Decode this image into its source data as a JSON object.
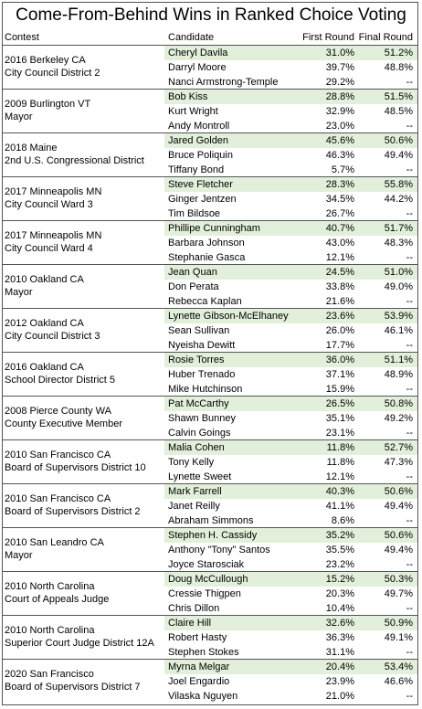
{
  "header": {
    "title": "Come-From-Behind Wins in Ranked Choice Voting"
  },
  "table": {
    "columns": [
      "Contest",
      "Candidate",
      "First Round",
      "Final Round"
    ],
    "groups": [
      {
        "contest": [
          "2016 Berkeley CA",
          "City Council District 2"
        ],
        "rows": [
          [
            "Cheryl Davila",
            "31.0%",
            "51.2%"
          ],
          [
            "Darryl Moore",
            "39.7%",
            "48.8%"
          ],
          [
            "Nanci Armstrong-Temple",
            "29.2%",
            "--"
          ]
        ]
      },
      {
        "contest": [
          "2009 Burlington VT",
          "Mayor"
        ],
        "rows": [
          [
            "Bob Kiss",
            "28.8%",
            "51.5%"
          ],
          [
            "Kurt Wright",
            "32.9%",
            "48.5%"
          ],
          [
            "Andy Montroll",
            "23.0%",
            "--"
          ]
        ]
      },
      {
        "contest": [
          "2018 Maine",
          "2nd U.S. Congressional District"
        ],
        "rows": [
          [
            "Jared Golden",
            "45.6%",
            "50.6%"
          ],
          [
            "Bruce Poliquin",
            "46.3%",
            "49.4%"
          ],
          [
            "Tiffany Bond",
            "5.7%",
            "--"
          ]
        ]
      },
      {
        "contest": [
          "2017 Minneapolis MN",
          "City Council Ward 3"
        ],
        "rows": [
          [
            "Steve Fletcher",
            "28.3%",
            "55.8%"
          ],
          [
            "Ginger Jentzen",
            "34.5%",
            "44.2%"
          ],
          [
            "Tim Bildsoe",
            "26.7%",
            "--"
          ]
        ]
      },
      {
        "contest": [
          "2017 Minneapolis MN",
          "City Council Ward 4"
        ],
        "rows": [
          [
            "Phillipe Cunningham",
            "40.7%",
            "51.7%"
          ],
          [
            "Barbara Johnson",
            "43.0%",
            "48.3%"
          ],
          [
            "Stephanie Gasca",
            "12.1%",
            "--"
          ]
        ]
      },
      {
        "contest": [
          "2010 Oakland CA",
          "Mayor"
        ],
        "rows": [
          [
            "Jean Quan",
            "24.5%",
            "51.0%"
          ],
          [
            "Don Perata",
            "33.8%",
            "49.0%"
          ],
          [
            "Rebecca Kaplan",
            "21.6%",
            "--"
          ]
        ]
      },
      {
        "contest": [
          "2012 Oakland CA",
          "City Council District 3"
        ],
        "rows": [
          [
            "Lynette Gibson-McElhaney",
            "23.6%",
            "53.9%"
          ],
          [
            "Sean Sullivan",
            "26.0%",
            "46.1%"
          ],
          [
            "Nyeisha Dewitt",
            "17.7%",
            "--"
          ]
        ]
      },
      {
        "contest": [
          "2016 Oakland CA",
          "School Director District 5"
        ],
        "rows": [
          [
            "Rosie Torres",
            "36.0%",
            "51.1%"
          ],
          [
            "Huber Trenado",
            "37.1%",
            "48.9%"
          ],
          [
            "Mike Hutchinson",
            "15.9%",
            "--"
          ]
        ]
      },
      {
        "contest": [
          "2008 Pierce County WA",
          "County Executive Member"
        ],
        "rows": [
          [
            "Pat McCarthy",
            "26.5%",
            "50.8%"
          ],
          [
            "Shawn Bunney",
            "35.1%",
            "49.2%"
          ],
          [
            "Calvin Goings",
            "23.1%",
            "--"
          ]
        ]
      },
      {
        "contest": [
          "2010 San Francisco CA",
          "Board of Supervisors District 10"
        ],
        "rows": [
          [
            "Malia Cohen",
            "11.8%",
            "52.7%"
          ],
          [
            "Tony Kelly",
            "11.8%",
            "47.3%"
          ],
          [
            "Lynette Sweet",
            "12.1%",
            "--"
          ]
        ]
      },
      {
        "contest": [
          "2010 San Francisco CA",
          "Board of Supervisors District 2"
        ],
        "rows": [
          [
            "Mark Farrell",
            "40.3%",
            "50.6%"
          ],
          [
            "Janet Reilly",
            "41.1%",
            "49.4%"
          ],
          [
            "Abraham Simmons",
            "8.6%",
            "--"
          ]
        ]
      },
      {
        "contest": [
          "2010 San Leandro CA",
          "Mayor"
        ],
        "rows": [
          [
            "Stephen H. Cassidy",
            "35.2%",
            "50.6%"
          ],
          [
            "Anthony \"Tony\" Santos",
            "35.5%",
            "49.4%"
          ],
          [
            "Joyce Starosciak",
            "23.2%",
            "--"
          ]
        ]
      },
      {
        "contest": [
          "2010 North Carolina",
          "Court of Appeals Judge"
        ],
        "rows": [
          [
            "Doug McCullough",
            "15.2%",
            "50.3%"
          ],
          [
            "Cressie Thigpen",
            "20.3%",
            "49.7%"
          ],
          [
            "Chris Dillon",
            "10.4%",
            "--"
          ]
        ]
      },
      {
        "contest": [
          "2010 North Carolina",
          "Superior Court Judge District 12A"
        ],
        "rows": [
          [
            "Claire Hill",
            "32.6%",
            "50.9%"
          ],
          [
            "Robert Hasty",
            "36.3%",
            "49.1%"
          ],
          [
            "Stephen Stokes",
            "31.1%",
            "--"
          ]
        ]
      },
      {
        "contest": [
          "2020 San Francisco",
          "Board of Supervisors District 7"
        ],
        "rows": [
          [
            "Myrna Melgar",
            "20.4%",
            "53.4%"
          ],
          [
            "Joel Engardio",
            "23.9%",
            "46.6%"
          ],
          [
            "Vilaska Nguyen",
            "21.0%",
            "--"
          ]
        ]
      }
    ]
  }
}
